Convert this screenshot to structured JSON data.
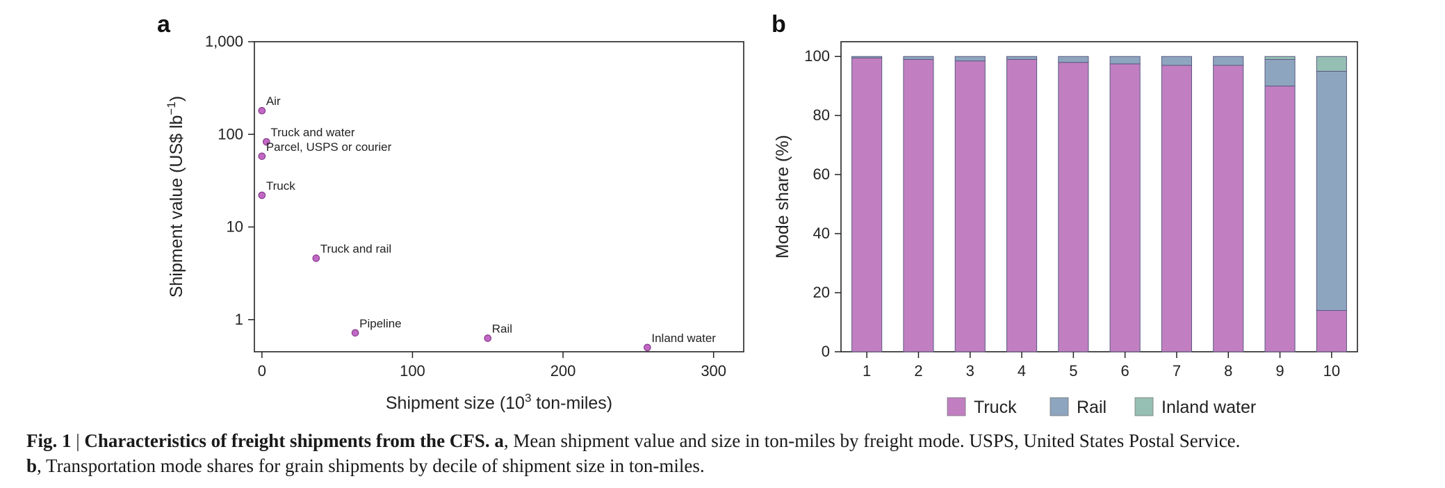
{
  "panel_a_letter": "a",
  "panel_b_letter": "b",
  "legend": [
    {
      "label": "Truck",
      "color": "#c17fc1"
    },
    {
      "label": "Rail",
      "color": "#8ea5bf"
    },
    {
      "label": "Inland water",
      "color": "#96bfb4"
    }
  ],
  "caption": {
    "fig_label": "Fig. 1",
    "separator": " | ",
    "bold_title": "Characteristics of freight shipments from the CFS.",
    "a_letter": "a",
    "a_text": ", Mean shipment value and size in ton-miles by freight mode. USPS, United States Postal Service.",
    "b_letter": "b",
    "b_text": ", Transportation mode shares for grain shipments by decile of shipment size in ton-miles."
  },
  "chart_data": [
    {
      "type": "scatter",
      "title": "",
      "xlabel": "Shipment size (10^3 ton-miles)",
      "xlabel_main": "Shipment size (10",
      "xlabel_sup": "3",
      "xlabel_tail": " ton-miles)",
      "ylabel": "Shipment value (US$ lb^-1)",
      "ylabel_main": "Shipment value (US$ lb",
      "ylabel_sup": "−1",
      "ylabel_tail": ")",
      "y_scale": "log",
      "xlim": [
        -5,
        320
      ],
      "ylim": [
        0.45,
        1000
      ],
      "xticks": [
        0,
        100,
        200,
        300
      ],
      "xtick_labels": [
        "0",
        "100",
        "200",
        "300"
      ],
      "yticks": [
        1,
        10,
        100,
        1000
      ],
      "ytick_labels": [
        "1",
        "10",
        "100",
        "1,000"
      ],
      "marker_color": "#c167c4",
      "points": [
        {
          "label": "Air",
          "x": 0,
          "y": 180
        },
        {
          "label": "Truck and water",
          "x": 3,
          "y": 83
        },
        {
          "label": "Parcel, USPS or courier",
          "x": 0,
          "y": 58
        },
        {
          "label": "Truck",
          "x": 0,
          "y": 22
        },
        {
          "label": "Truck and rail",
          "x": 36,
          "y": 4.6
        },
        {
          "label": "Pipeline",
          "x": 62,
          "y": 0.72
        },
        {
          "label": "Rail",
          "x": 150,
          "y": 0.63
        },
        {
          "label": "Inland water",
          "x": 256,
          "y": 0.5
        }
      ]
    },
    {
      "type": "bar",
      "stacked": true,
      "title": "",
      "xlabel": "",
      "ylabel": "Mode share (%)",
      "ylim": [
        0,
        105
      ],
      "yticks": [
        0,
        20,
        40,
        60,
        80,
        100
      ],
      "ytick_labels": [
        "0",
        "20",
        "40",
        "60",
        "80",
        "100"
      ],
      "legend_position": "bottom",
      "categories": [
        "1",
        "2",
        "3",
        "4",
        "5",
        "6",
        "7",
        "8",
        "9",
        "10"
      ],
      "series": [
        {
          "name": "Truck",
          "color": "#c17fc1",
          "values": [
            99.5,
            99,
            98.5,
            99,
            98,
            97.5,
            97,
            97,
            90,
            14
          ]
        },
        {
          "name": "Rail",
          "color": "#8ea5bf",
          "values": [
            0.5,
            1,
            1.5,
            1,
            2,
            2.5,
            3,
            3,
            9,
            81
          ]
        },
        {
          "name": "Inland water",
          "color": "#96bfb4",
          "values": [
            0,
            0,
            0,
            0,
            0,
            0,
            0,
            0,
            1,
            5
          ]
        }
      ]
    }
  ]
}
